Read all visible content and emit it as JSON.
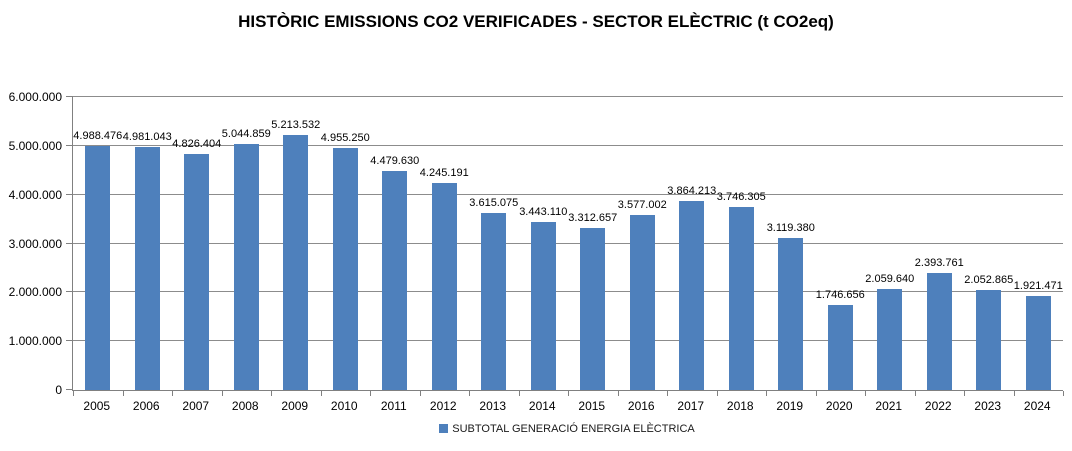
{
  "chart_data": {
    "type": "bar",
    "title": "HISTÒRIC EMISSIONS CO2 VERIFICADES - SECTOR ELÈCTRIC (t CO2eq)",
    "categories": [
      "2005",
      "2006",
      "2007",
      "2008",
      "2009",
      "2010",
      "2011",
      "2012",
      "2013",
      "2014",
      "2015",
      "2016",
      "2017",
      "2018",
      "2019",
      "2020",
      "2021",
      "2022",
      "2023",
      "2024"
    ],
    "values": [
      4988476,
      4981043,
      4826404,
      5044859,
      5213532,
      4955250,
      4479630,
      4245191,
      3615075,
      3443110,
      3312657,
      3577002,
      3864213,
      3746305,
      3119380,
      1746656,
      2059640,
      2393761,
      2052865,
      1921471
    ],
    "value_labels": [
      "4.988.476",
      "4.981.043",
      "4.826.404",
      "5.044.859",
      "5.213.532",
      "4.955.250",
      "4.479.630",
      "4.245.191",
      "3.615.075",
      "3.443.110",
      "3.312.657",
      "3.577.002",
      "3.864.213",
      "3.746.305",
      "3.119.380",
      "1.746.656",
      "2.059.640",
      "2.393.761",
      "2.052.865",
      "1.921.471"
    ],
    "xlabel": "",
    "ylabel": "",
    "ylim": [
      0,
      6000000
    ],
    "y_ticks": [
      "0",
      "1.000.000",
      "2.000.000",
      "3.000.000",
      "4.000.000",
      "5.000.000",
      "6.000.000"
    ],
    "grid": true,
    "data_labels_shown": true,
    "legend": {
      "label": "SUBTOTAL GENERACIÓ ENERGIA ELÈCTRICA",
      "position": "bottom"
    },
    "colors": {
      "bar": "#4e80bc",
      "gridline": "#8c8c8c",
      "axis": "#808080",
      "text": "#000000",
      "background": "#ffffff"
    }
  }
}
